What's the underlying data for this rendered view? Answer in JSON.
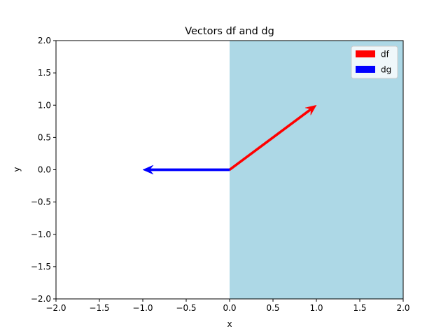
{
  "chart_data": {
    "type": "quiver",
    "title": "Vectors df and dg",
    "xlabel": "x",
    "ylabel": "y",
    "xlim": [
      -2.0,
      2.0
    ],
    "ylim": [
      -2.0,
      2.0
    ],
    "xticks": [
      -2.0,
      -1.5,
      -1.0,
      -0.5,
      0.0,
      0.5,
      1.0,
      1.5,
      2.0
    ],
    "yticks": [
      -2.0,
      -1.5,
      -1.0,
      -0.5,
      0.0,
      0.5,
      1.0,
      1.5,
      2.0
    ],
    "xtick_labels": [
      "−2.0",
      "−1.5",
      "−1.0",
      "−0.5",
      "0.0",
      "0.5",
      "1.0",
      "1.5",
      "2.0"
    ],
    "ytick_labels": [
      "−2.0",
      "−1.5",
      "−1.0",
      "−0.5",
      "0.0",
      "0.5",
      "1.0",
      "1.5",
      "2.0"
    ],
    "grid": false,
    "shaded_region": {
      "x": [
        0.0,
        2.0
      ],
      "y": [
        -2.0,
        2.0
      ],
      "color": "#add8e6"
    },
    "series": [
      {
        "name": "df",
        "origin": [
          0,
          0
        ],
        "vector": [
          1,
          1
        ],
        "color": "#ff0000"
      },
      {
        "name": "dg",
        "origin": [
          0,
          0
        ],
        "vector": [
          -1,
          0
        ],
        "color": "#0000ff"
      }
    ],
    "legend": {
      "position": "upper right"
    }
  }
}
